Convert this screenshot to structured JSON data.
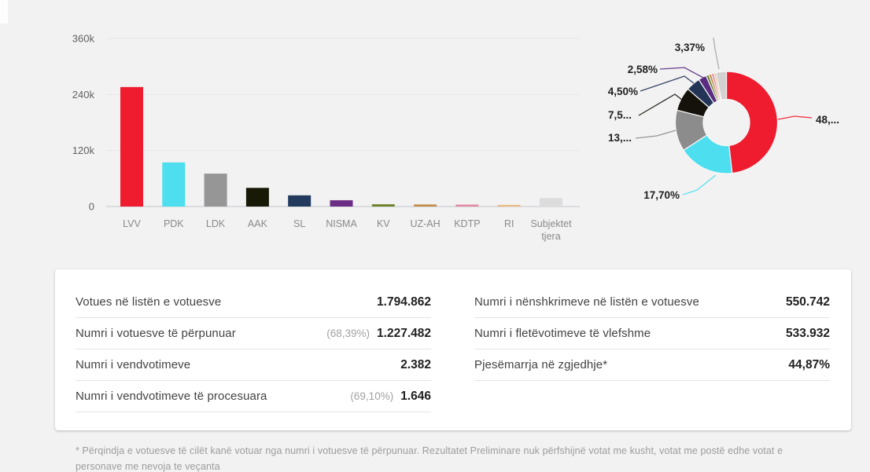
{
  "page": {
    "background": "#f2f2f2",
    "card_background": "#ffffff"
  },
  "chart_data": [
    {
      "type": "bar",
      "title": "",
      "xlabel": "",
      "ylabel": "",
      "categories": [
        "LVV",
        "PDK",
        "LDK",
        "AAK",
        "SL",
        "NISMA",
        "KV",
        "UZ-AH",
        "KDTP",
        "RI",
        "Subjektet tjera"
      ],
      "values": [
        256000,
        94500,
        70500,
        40000,
        24000,
        13500,
        4800,
        4400,
        4200,
        3500,
        18000
      ],
      "colors": [
        "#ee1c2e",
        "#4ddfef",
        "#969696",
        "#191907",
        "#223a5e",
        "#6b2d84",
        "#6d7f2a",
        "#c08c4a",
        "#e388a0",
        "#ecb97e",
        "#dcdcdc"
      ],
      "ylim": [
        0,
        360000
      ],
      "ytick_values": [
        0,
        120000,
        240000,
        360000
      ],
      "ytick_labels": [
        "0",
        "120k",
        "240k",
        "360k"
      ],
      "grid": true,
      "legend": "none"
    },
    {
      "type": "pie",
      "subtype": "donut",
      "title": "",
      "categories": [
        "LVV",
        "PDK",
        "LDK",
        "AAK",
        "SL",
        "NISMA",
        "KV",
        "UZ-AH",
        "KDTP",
        "RI",
        "Subjektet tjera"
      ],
      "values": [
        48.33,
        17.7,
        13.06,
        7.52,
        4.5,
        2.58,
        0.9,
        0.83,
        0.8,
        0.64,
        3.37
      ],
      "slice_labels": [
        "48,...",
        "17,70%",
        "13,...",
        "7,5...",
        "4,50%",
        "2,58%",
        "",
        "",
        "",
        "",
        "3,37%"
      ],
      "colors": [
        "#ee1c2e",
        "#4ddfef",
        "#8c8c8c",
        "#14120a",
        "#233456",
        "#5a2c82",
        "#6d7f2a",
        "#c08c4a",
        "#e388a0",
        "#ecb97e",
        "#d2d2d2"
      ],
      "legend": "none"
    }
  ],
  "stats": {
    "left": [
      {
        "label": "Votues në listën e votuesve",
        "percent": "",
        "value": "1.794.862"
      },
      {
        "label": "Numri i votuesve të përpunuar",
        "percent": "(68,39%)",
        "value": "1.227.482"
      },
      {
        "label": "Numri i vendvotimeve",
        "percent": "",
        "value": "2.382"
      },
      {
        "label": "Numri i vendvotimeve të procesuara",
        "percent": "(69,10%)",
        "value": "1.646"
      }
    ],
    "right": [
      {
        "label": "Numri i nënshkrimeve në listën e votuesve",
        "percent": "",
        "value": "550.742"
      },
      {
        "label": "Numri i fletëvotimeve të vlefshme",
        "percent": "",
        "value": "533.932"
      },
      {
        "label": "Pjesëmarrja në zgjedhje*",
        "percent": "",
        "value": "44,87%"
      }
    ]
  },
  "footnote": "* Përqindja e votuesve të cilët kanë votuar nga numri i votuesve të përpunuar. Rezultatet Preliminare nuk përfshijnë votat me kusht, votat me postë edhe votat e personave me nevoja te veçanta"
}
